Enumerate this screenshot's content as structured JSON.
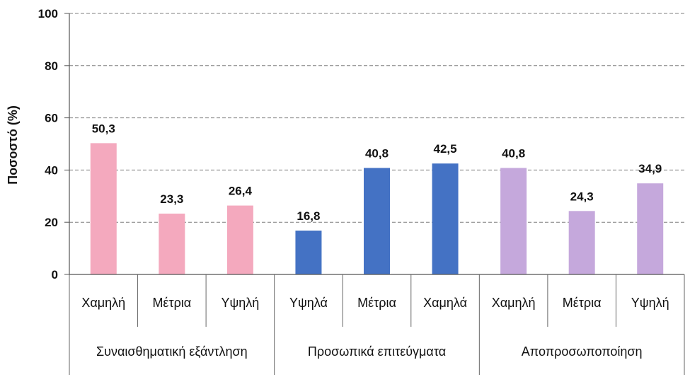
{
  "chart_data": {
    "type": "bar",
    "ylabel": "Ποσοστό (%)",
    "xlabel": "",
    "ylim": [
      0,
      100
    ],
    "yticks": [
      0,
      20,
      40,
      60,
      80,
      100
    ],
    "grid": true,
    "categories": [
      "Χαμηλή",
      "Μέτρια",
      "Υψηλή",
      "Υψηλά",
      "Μέτρια",
      "Χαμηλά",
      "Χαμηλή",
      "Μέτρια",
      "Υψηλή"
    ],
    "values": [
      50.3,
      23.3,
      26.4,
      16.8,
      40.8,
      42.5,
      40.8,
      24.3,
      34.9
    ],
    "value_labels": [
      "50,3",
      "23,3",
      "26,4",
      "16,8",
      "40,8",
      "42,5",
      "40,8",
      "24,3",
      "34,9"
    ],
    "groups": [
      {
        "name": "Συναισθηματική εξάντληση",
        "start": 0,
        "count": 3,
        "color": "#f4a9be"
      },
      {
        "name": "Προσωπικά επιτεύγματα",
        "start": 3,
        "count": 3,
        "color": "#4472c4"
      },
      {
        "name": "Αποπροσωποποίηση",
        "start": 6,
        "count": 3,
        "color": "#c5a8dc"
      }
    ]
  }
}
